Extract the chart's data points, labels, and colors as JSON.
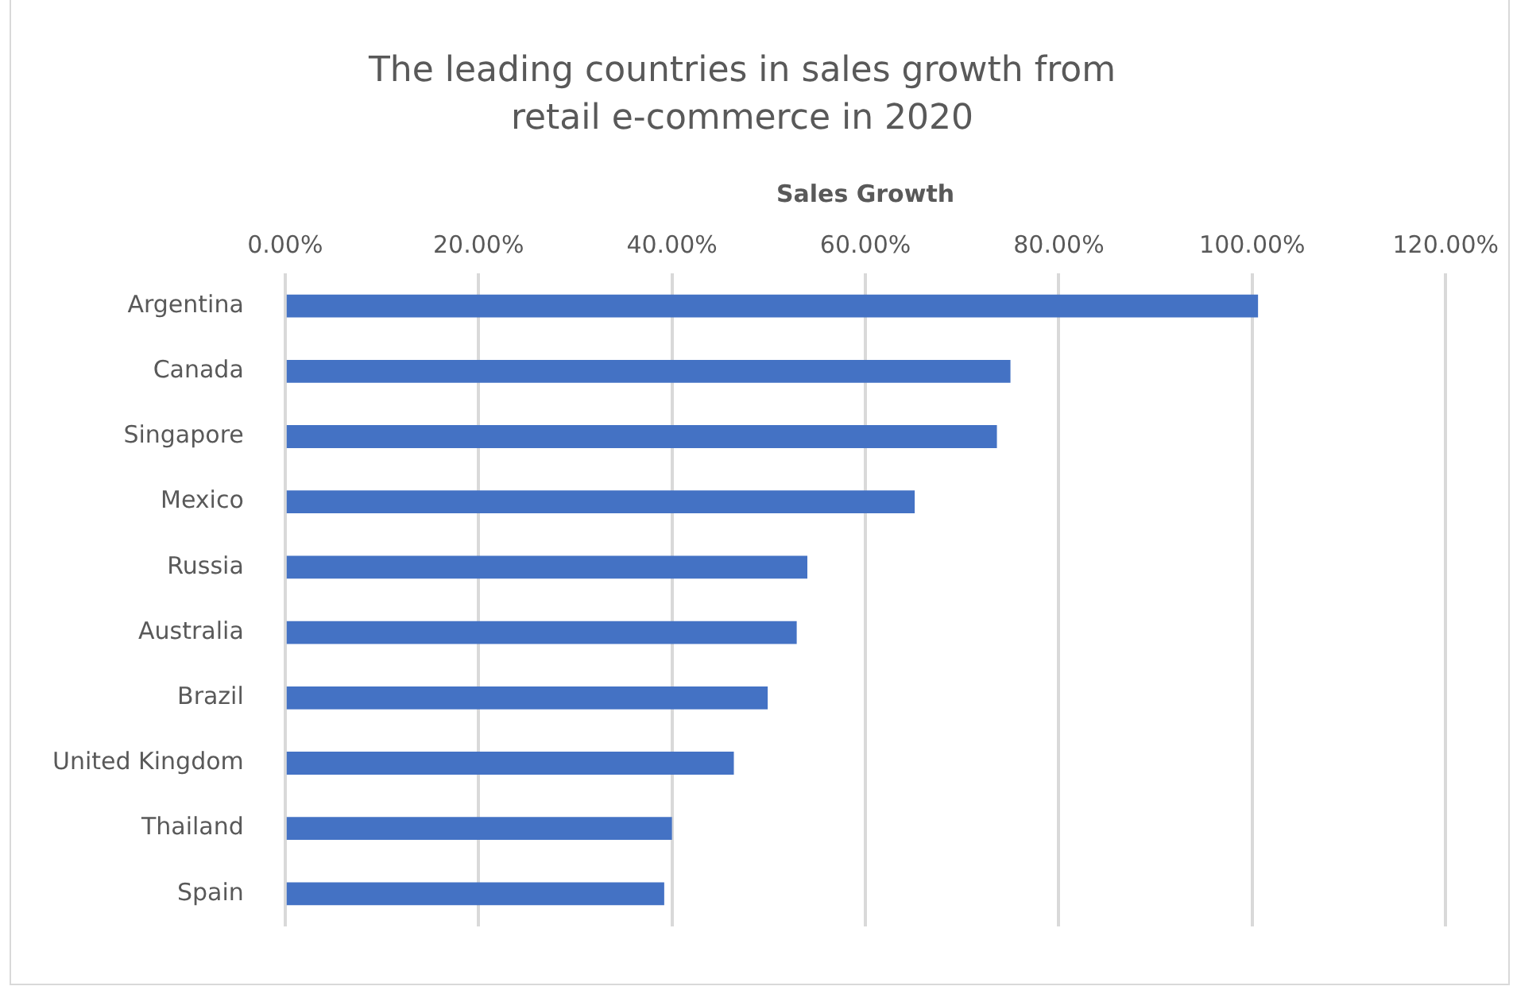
{
  "chart_data": {
    "type": "bar",
    "orientation": "horizontal",
    "title": "The leading countries in sales growth from retail e-commerce in 2020",
    "xlabel": "Sales Growth",
    "categories": [
      "Argentina",
      "Canada",
      "Singapore",
      "Mexico",
      "Russia",
      "Australia",
      "Brazil",
      "United Kingdom",
      "Thailand",
      "Spain"
    ],
    "values": [
      100.6,
      75.0,
      73.6,
      65.1,
      54.0,
      52.9,
      49.9,
      46.4,
      40.0,
      39.2
    ],
    "color": "#4472c4",
    "xlim": [
      0,
      120
    ],
    "xticks": [
      {
        "value": 0,
        "label": "0.00%"
      },
      {
        "value": 20,
        "label": "20.00%"
      },
      {
        "value": 40,
        "label": "40.00%"
      },
      {
        "value": 60,
        "label": "60.00%"
      },
      {
        "value": 80,
        "label": "80.00%"
      },
      {
        "value": 100,
        "label": "100.00%"
      },
      {
        "value": 120,
        "label": "120.00%"
      }
    ],
    "grid": "x",
    "legend": false
  }
}
